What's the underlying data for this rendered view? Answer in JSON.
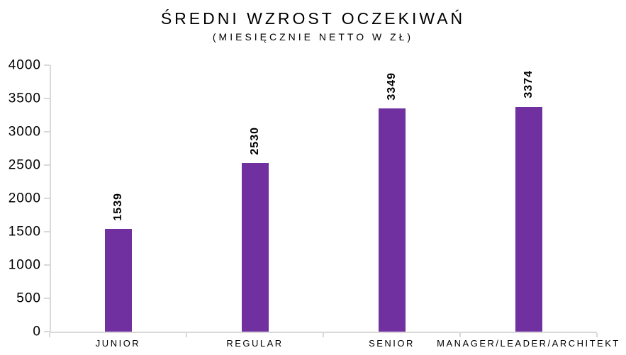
{
  "chart_data": {
    "type": "bar",
    "title": "ŚREDNI WZROST OCZEKIWAŃ",
    "subtitle": "(MIESIĘCZNIE NETTO W ZŁ)",
    "categories": [
      "JUNIOR",
      "REGULAR",
      "SENIOR",
      "MANAGER/LEADER/ARCHITEKT"
    ],
    "values": [
      1539,
      2530,
      3349,
      3374
    ],
    "value_labels": [
      "1539",
      "2530",
      "3349",
      "3374"
    ],
    "value_labels_rotated": true,
    "xlabel": "",
    "ylabel": "",
    "ylim": [
      0,
      4000
    ],
    "yticks": [
      0,
      500,
      1000,
      1500,
      2000,
      2500,
      3000,
      3500,
      4000
    ],
    "grid": false,
    "legend": false,
    "colors": {
      "bar": "#7030A0",
      "axis": "#D9D9D9",
      "text": "#000000",
      "background": "#FFFFFF"
    }
  }
}
